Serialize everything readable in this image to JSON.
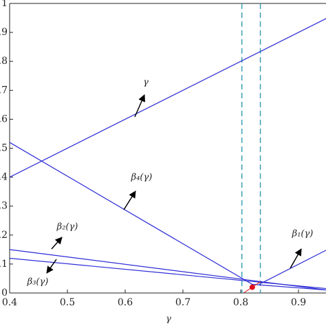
{
  "chart_data": {
    "type": "line",
    "x_label": "γ",
    "xlim": [
      0.4,
      0.95
    ],
    "xticks": [
      0.4,
      0.5,
      0.6,
      0.7,
      0.8,
      0.9
    ],
    "ylim": [
      0,
      1
    ],
    "yticks": [
      0,
      0.1,
      0.2,
      0.3,
      0.4,
      0.5,
      0.6,
      0.7,
      0.8,
      0.9,
      1
    ],
    "series": [
      {
        "name": "γ",
        "color": "#2b2bd6",
        "x": [
          0.4,
          0.95
        ],
        "values": [
          0.4,
          0.95
        ]
      },
      {
        "name": "β₄(γ)",
        "color": "#2b2bd6",
        "x": [
          0.4,
          0.82,
          0.95
        ],
        "values": [
          0.52,
          0.03,
          0.01
        ]
      },
      {
        "name": "β₂(γ)",
        "color": "#2b2bd6",
        "x": [
          0.4,
          0.95
        ],
        "values": [
          0.15,
          0.01
        ]
      },
      {
        "name": "β₃(γ)",
        "color": "#2b2bd6",
        "x": [
          0.4,
          0.95
        ],
        "values": [
          0.12,
          0.015
        ]
      },
      {
        "name": "β₁(γ)",
        "color": "#2b2bd6",
        "x": [
          0.832,
          0.95
        ],
        "values": [
          0.03,
          0.15
        ]
      }
    ],
    "vlines": {
      "color": "#3a9fb5",
      "x": [
        0.802,
        0.834
      ]
    },
    "point": {
      "color": "#e0101a",
      "x": 0.82,
      "y": 0.02
    }
  }
}
